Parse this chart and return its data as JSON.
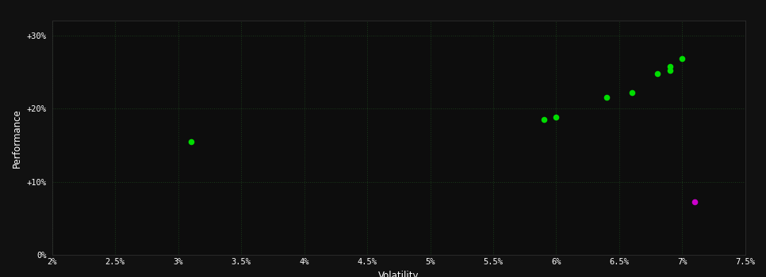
{
  "background_color": "#111111",
  "plot_bg_color": "#0d0d0d",
  "grid_color": "#1a3a1a",
  "text_color": "#ffffff",
  "xlabel": "Volatility",
  "ylabel": "Performance",
  "xlim": [
    0.02,
    0.075
  ],
  "ylim": [
    0.0,
    0.32
  ],
  "xticks": [
    0.02,
    0.025,
    0.03,
    0.035,
    0.04,
    0.045,
    0.05,
    0.055,
    0.06,
    0.065,
    0.07,
    0.075
  ],
  "yticks": [
    0.0,
    0.1,
    0.2,
    0.3
  ],
  "ytick_labels": [
    "0%",
    "+10%",
    "+20%",
    "+30%"
  ],
  "xtick_labels": [
    "2%",
    "2.5%",
    "3%",
    "3.5%",
    "4%",
    "4.5%",
    "5%",
    "5.5%",
    "6%",
    "6.5%",
    "7%",
    "7.5%"
  ],
  "green_points": [
    [
      0.031,
      0.155
    ],
    [
      0.059,
      0.185
    ],
    [
      0.06,
      0.188
    ],
    [
      0.064,
      0.215
    ],
    [
      0.066,
      0.222
    ],
    [
      0.068,
      0.248
    ],
    [
      0.069,
      0.252
    ],
    [
      0.069,
      0.258
    ],
    [
      0.07,
      0.268
    ]
  ],
  "magenta_points": [
    [
      0.071,
      0.072
    ]
  ],
  "green_color": "#00dd00",
  "magenta_color": "#cc00cc",
  "marker_size": 30
}
